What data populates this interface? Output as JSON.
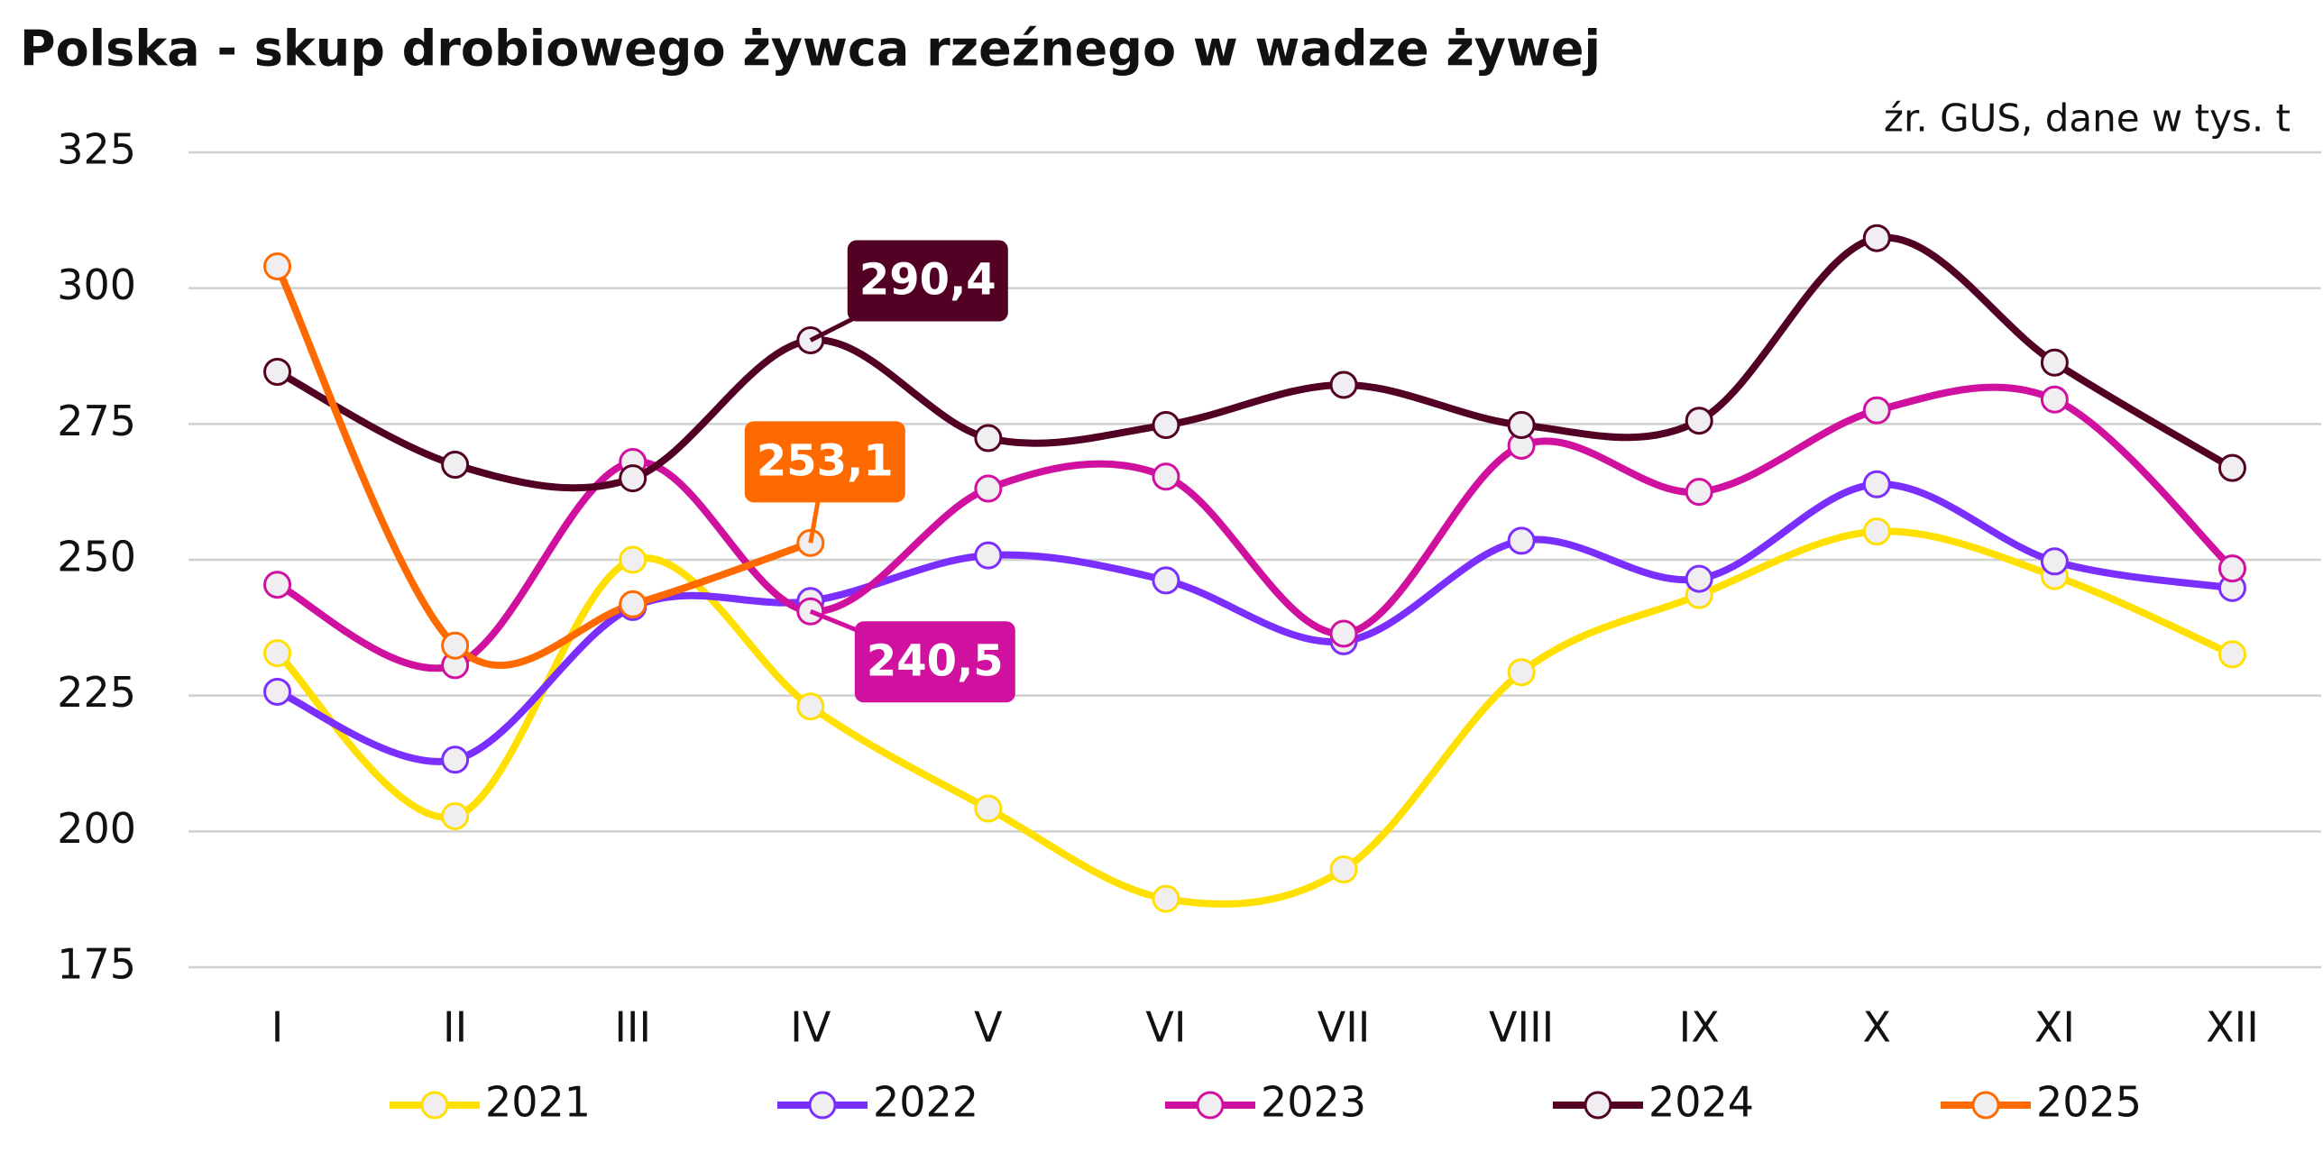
{
  "chart_data": {
    "type": "line",
    "title": "Polska - skup drobiowego żywca rzeźnego w wadze żywej",
    "source": "źr. GUS, dane w tys. t",
    "categories": [
      "I",
      "II",
      "III",
      "IV",
      "V",
      "VI",
      "VII",
      "VIII",
      "IX",
      "X",
      "XI",
      "XII"
    ],
    "series": [
      {
        "name": "2021",
        "color": "#ffe000",
        "values": [
          232.8,
          202.8,
          250,
          223,
          204.2,
          187.6,
          193,
          229.3,
          243.5,
          255.2,
          247,
          232.6
        ]
      },
      {
        "name": "2022",
        "color": "#7b2fff",
        "values": [
          225.7,
          213.2,
          241.3,
          242.4,
          250.8,
          246.2,
          235,
          253.5,
          246.5,
          263.9,
          249.7,
          244.8
        ]
      },
      {
        "name": "2023",
        "color": "#d0109f",
        "values": [
          245.4,
          230.6,
          268,
          240.5,
          263.1,
          265.3,
          236.4,
          271,
          262.5,
          277.5,
          279.5,
          248.4
        ],
        "value_labels": [
          null,
          null,
          null,
          "240,5",
          null,
          null,
          null,
          null,
          null,
          null,
          null,
          null
        ]
      },
      {
        "name": "2024",
        "color": "#520023",
        "values": [
          284.6,
          267.5,
          265,
          290.4,
          272.4,
          274.8,
          282.2,
          274.8,
          275.6,
          309.2,
          286.3,
          266.9
        ],
        "value_labels": [
          null,
          null,
          null,
          "290,4",
          null,
          null,
          null,
          null,
          null,
          null,
          null,
          null
        ]
      },
      {
        "name": "2025",
        "color": "#ff6a00",
        "values": [
          304,
          234.2,
          241.8,
          253.1,
          null,
          null,
          null,
          null,
          null,
          null,
          null,
          null
        ],
        "value_labels": [
          null,
          null,
          null,
          "253,1",
          null,
          null,
          null,
          null,
          null,
          null,
          null,
          null
        ]
      }
    ],
    "ylim": [
      175,
      325
    ],
    "yticks": [
      175,
      200,
      225,
      250,
      275,
      300,
      325
    ],
    "grid": true,
    "legend": "bottom"
  }
}
